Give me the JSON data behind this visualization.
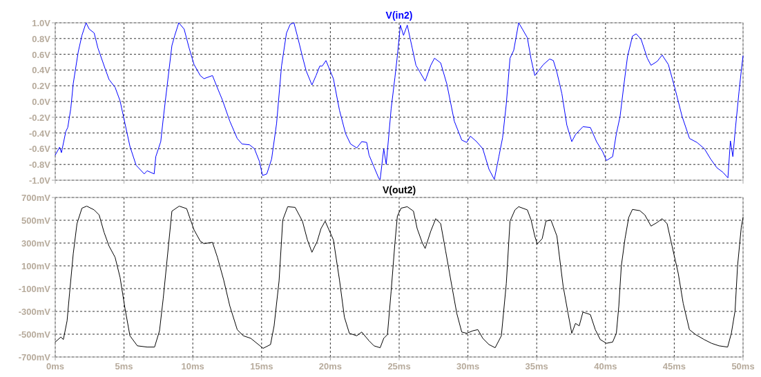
{
  "chart_data": [
    {
      "type": "line",
      "xlim": [
        0,
        50
      ],
      "xticks": [
        0,
        5,
        10,
        15,
        20,
        25,
        30,
        35,
        40,
        45,
        50
      ],
      "ylim": [
        -1,
        1
      ],
      "yticks": [
        {
          "value": -1,
          "label": "-1.0V"
        },
        {
          "value": -0.8,
          "label": "-0.8V"
        },
        {
          "value": -0.6,
          "label": "-0.6V"
        },
        {
          "value": -0.4,
          "label": "-0.4V"
        },
        {
          "value": -0.2,
          "label": "-0.2V"
        },
        {
          "value": 0,
          "label": "0.0V"
        },
        {
          "value": 0.2,
          "label": "0.2V"
        },
        {
          "value": 0.4,
          "label": "0.4V"
        },
        {
          "value": 0.6,
          "label": "0.6V"
        },
        {
          "value": 0.8,
          "label": "0.8V"
        },
        {
          "value": 1,
          "label": "1.0V"
        }
      ],
      "tick_labels": "y",
      "grid": true,
      "legend": "top",
      "x": [
        0,
        0.32,
        0.45,
        0.77,
        0.91,
        1.13,
        1.31,
        1.67,
        1.94,
        2.24,
        2.47,
        2.83,
        3.1,
        3.64,
        3.91,
        4.35,
        4.71,
        5.07,
        5.43,
        5.88,
        6.47,
        6.68,
        7.19,
        7.31,
        7.67,
        7.85,
        8.12,
        8.48,
        8.69,
        8.98,
        9.37,
        9.73,
        10.09,
        10.54,
        10.81,
        11.43,
        11.7,
        12.15,
        12.69,
        13.23,
        13.58,
        14.12,
        14.48,
        14.84,
        15.07,
        15.38,
        15.73,
        16.09,
        16.45,
        16.81,
        17.08,
        17.35,
        17.62,
        17.97,
        18.24,
        18.66,
        18.96,
        19.23,
        19.41,
        19.68,
        20.22,
        20.66,
        21.11,
        21.47,
        21.92,
        22.28,
        22.64,
        22.81,
        23.17,
        23.53,
        23.62,
        23.88,
        24.06,
        24.42,
        24.69,
        24.87,
        25.09,
        25.32,
        25.59,
        25.95,
        26.22,
        26.49,
        26.89,
        27.3,
        27.57,
        28.02,
        28.47,
        29.01,
        29.55,
        29.91,
        30.18,
        30.63,
        31.08,
        31.53,
        31.92,
        32.25,
        32.52,
        32.79,
        33.06,
        33.33,
        33.69,
        33.96,
        34.32,
        34.59,
        34.86,
        35.13,
        35.49,
        35.94,
        36.21,
        36.47,
        36.83,
        37.19,
        37.55,
        37.82,
        38.36,
        38.9,
        39.35,
        39.8,
        40.07,
        40.52,
        40.79,
        41.06,
        41.33,
        41.6,
        41.96,
        42.23,
        42.59,
        43.04,
        43.31,
        43.76,
        44.12,
        44.57,
        45.03,
        45.57,
        46.11,
        46.65,
        47.19,
        47.64,
        48.09,
        48.54,
        48.9,
        49.08,
        49.26,
        49.44,
        49.71,
        49.89,
        50
      ],
      "series": [
        {
          "name": "V(in2)",
          "color": "#0000ff",
          "values": [
            -0.68,
            -0.58,
            -0.65,
            -0.38,
            -0.33,
            -0.09,
            0.23,
            0.63,
            0.84,
            1.0,
            0.92,
            0.87,
            0.68,
            0.41,
            0.28,
            0.18,
            0.01,
            -0.28,
            -0.57,
            -0.81,
            -0.92,
            -0.88,
            -0.92,
            -0.7,
            -0.51,
            -0.22,
            0.18,
            0.71,
            0.84,
            1.0,
            0.92,
            0.68,
            0.47,
            0.33,
            0.29,
            0.33,
            0.21,
            0.02,
            -0.25,
            -0.47,
            -0.54,
            -0.55,
            -0.6,
            -0.76,
            -0.94,
            -0.92,
            -0.73,
            -0.28,
            0.45,
            0.87,
            0.98,
            1.0,
            0.82,
            0.57,
            0.39,
            0.21,
            0.33,
            0.45,
            0.45,
            0.52,
            0.29,
            -0.11,
            -0.41,
            -0.54,
            -0.59,
            -0.51,
            -0.52,
            -0.68,
            -0.83,
            -0.98,
            -0.99,
            -0.6,
            -0.8,
            -0.09,
            0.3,
            0.58,
            0.97,
            0.84,
            0.97,
            0.68,
            0.46,
            0.38,
            0.26,
            0.46,
            0.55,
            0.49,
            0.22,
            -0.25,
            -0.49,
            -0.52,
            -0.44,
            -0.51,
            -0.6,
            -0.86,
            -0.99,
            -0.7,
            -0.46,
            -0.03,
            0.55,
            0.65,
            1.0,
            0.92,
            0.81,
            0.54,
            0.33,
            0.39,
            0.47,
            0.54,
            0.52,
            0.37,
            0.1,
            -0.3,
            -0.51,
            -0.42,
            -0.32,
            -0.33,
            -0.51,
            -0.64,
            -0.75,
            -0.7,
            -0.41,
            -0.19,
            0.2,
            0.57,
            0.83,
            0.86,
            0.79,
            0.55,
            0.46,
            0.51,
            0.59,
            0.47,
            0.18,
            -0.19,
            -0.47,
            -0.52,
            -0.6,
            -0.73,
            -0.84,
            -0.9,
            -0.97,
            -0.5,
            -0.7,
            -0.35,
            0.13,
            0.42,
            0.58
          ]
        }
      ]
    },
    {
      "type": "line",
      "xlim": [
        0,
        50
      ],
      "xticks": [
        {
          "value": 0,
          "label": "0ms"
        },
        {
          "value": 5,
          "label": "5ms"
        },
        {
          "value": 10,
          "label": "10ms"
        },
        {
          "value": 15,
          "label": "15ms"
        },
        {
          "value": 20,
          "label": "20ms"
        },
        {
          "value": 25,
          "label": "25ms"
        },
        {
          "value": 30,
          "label": "30ms"
        },
        {
          "value": 35,
          "label": "35ms"
        },
        {
          "value": 40,
          "label": "40ms"
        },
        {
          "value": 45,
          "label": "45ms"
        },
        {
          "value": 50,
          "label": "50ms"
        }
      ],
      "ylim": [
        -700,
        700
      ],
      "yticks": [
        {
          "value": -700,
          "label": "-700mV"
        },
        {
          "value": -500,
          "label": "-500mV"
        },
        {
          "value": -300,
          "label": "-300mV"
        },
        {
          "value": -100,
          "label": "-100mV"
        },
        {
          "value": 100,
          "label": "100mV"
        },
        {
          "value": 300,
          "label": "300mV"
        },
        {
          "value": 500,
          "label": "500mV"
        },
        {
          "value": 700,
          "label": "700mV"
        }
      ],
      "grid": true,
      "legend": "top",
      "x": [
        0,
        0.41,
        0.59,
        0.86,
        1.04,
        1.31,
        1.58,
        1.94,
        2.29,
        2.83,
        3.19,
        3.55,
        3.91,
        4.35,
        4.71,
        5.07,
        5.43,
        5.97,
        6.68,
        7.22,
        7.58,
        7.85,
        8.12,
        8.48,
        9.01,
        9.55,
        10.09,
        10.54,
        10.81,
        11.43,
        11.79,
        12.24,
        12.69,
        13.23,
        13.67,
        14.21,
        14.66,
        15.11,
        15.65,
        15.91,
        16.27,
        16.54,
        16.9,
        17.44,
        17.97,
        18.33,
        18.66,
        19.05,
        19.32,
        19.62,
        20.22,
        20.66,
        21.02,
        21.38,
        21.92,
        22.28,
        22.81,
        23.17,
        23.62,
        23.88,
        24.15,
        24.42,
        24.69,
        24.87,
        25.14,
        25.59,
        26.04,
        26.31,
        26.67,
        26.89,
        27.3,
        27.66,
        28.02,
        28.38,
        28.83,
        29.19,
        29.55,
        29.91,
        30.36,
        30.72,
        31.08,
        31.53,
        31.98,
        32.43,
        32.79,
        33.06,
        33.42,
        33.69,
        34.32,
        34.59,
        34.86,
        35.04,
        35.4,
        35.67,
        36.03,
        36.47,
        36.92,
        37.28,
        37.55,
        37.82,
        38.09,
        38.36,
        38.9,
        39.26,
        39.62,
        40.07,
        40.52,
        40.79,
        40.97,
        41.15,
        41.42,
        41.69,
        41.96,
        42.5,
        42.86,
        43.31,
        43.76,
        44.12,
        44.48,
        44.84,
        45.29,
        45.65,
        46.1,
        46.55,
        47.17,
        47.71,
        48.25,
        48.88,
        49.15,
        49.42,
        49.6,
        49.87,
        50
      ],
      "series": [
        {
          "name": "V(out2)",
          "color": "#000000",
          "values": [
            -569,
            -525,
            -547,
            -383,
            -142,
            208,
            470,
            606,
            624,
            591,
            547,
            394,
            274,
            175,
            0,
            -274,
            -514,
            -602,
            -613,
            -613,
            -470,
            -186,
            142,
            580,
            624,
            602,
            416,
            317,
            295,
            306,
            175,
            -22,
            -252,
            -460,
            -514,
            -536,
            -580,
            -624,
            -591,
            -427,
            -33,
            503,
            619,
            613,
            492,
            328,
            219,
            317,
            427,
            492,
            328,
            -22,
            -350,
            -492,
            -514,
            -481,
            -558,
            -602,
            -619,
            -536,
            -503,
            -120,
            295,
            536,
            606,
            619,
            580,
            427,
            306,
            252,
            405,
            514,
            470,
            230,
            -77,
            -317,
            -481,
            -492,
            -470,
            -460,
            -536,
            -591,
            -619,
            -514,
            -55,
            492,
            591,
            619,
            591,
            503,
            361,
            291,
            339,
            492,
            503,
            361,
            -77,
            -317,
            -492,
            -405,
            -427,
            -306,
            -328,
            -460,
            -547,
            -580,
            -569,
            -492,
            -252,
            98,
            339,
            525,
            595,
            584,
            547,
            449,
            481,
            514,
            470,
            274,
            33,
            -230,
            -460,
            -503,
            -547,
            -580,
            -602,
            -613,
            -492,
            -295,
            98,
            438,
            525
          ]
        }
      ]
    }
  ]
}
